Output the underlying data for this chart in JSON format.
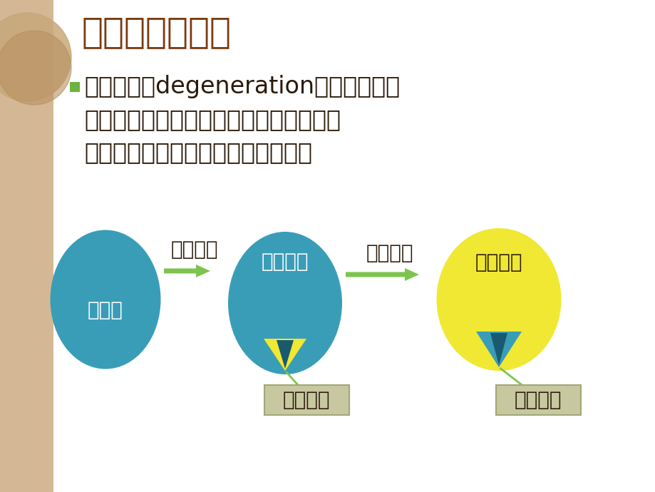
{
  "bg_color": "#ffffff",
  "left_stripe_color": "#d4b896",
  "title": "一、菌种的衰退",
  "title_color": "#7a3b10",
  "title_fontsize": 36,
  "bullet_color": "#6db33f",
  "body_line1": "菌种衰退（degeneration）是指由于自",
  "body_line2": "发突变的结果，而使某物种原有的一系列",
  "body_line3": "生物学性状发生量变或质变的现象。",
  "body_color": "#2a1a0a",
  "body_fontsize": 24,
  "circle1_color": "#3a9db8",
  "circle1_label": "纯菌种",
  "circle2_color": "#3a9db8",
  "circle2_label": "不纯菌种",
  "circle3_color": "#f0e832",
  "circle3_label": "衰退菌种",
  "arrow1_label": "自发突变",
  "arrow2_label": "传代增殖",
  "arrow_color": "#7dc44e",
  "tri2_yellow": "#f0e832",
  "tri2_dark": "#1a5a6e",
  "tri3_teal": "#3a9db8",
  "tri3_dark": "#1a5a6e",
  "box1_label": "突变个体",
  "box2_label": "原始个体",
  "box_bg": "#c8c8a0",
  "box_border": "#a0a878",
  "box_text_color": "#2a1a0a",
  "label_fontsize": 20,
  "arrow_label_fontsize": 20,
  "circle_label_fontsize": 20,
  "deco_circle_color1": "#c8a87a",
  "deco_circle_color2": "#b89060"
}
